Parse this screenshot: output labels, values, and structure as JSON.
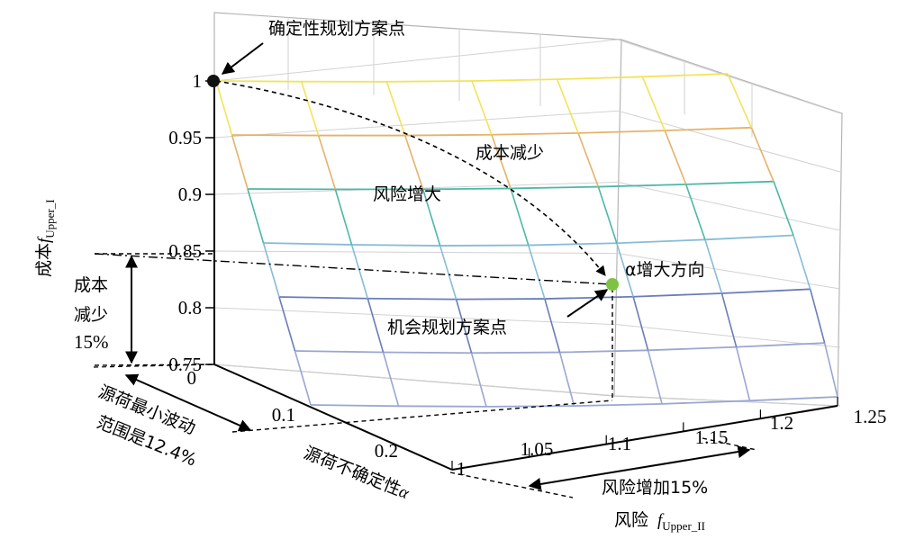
{
  "chart_data": {
    "type": "surface",
    "title": "",
    "x_axis": {
      "label_prefix": "风险",
      "label_var": "f",
      "label_sub": "Upper_II",
      "ticks": [
        "1",
        "1.05",
        "1.1",
        "1.15",
        "1.2",
        "1.25"
      ]
    },
    "y_axis": {
      "label_prefix": "源荷不确定性",
      "label_var": "α",
      "ticks": [
        "0",
        "0.1",
        "0.2"
      ]
    },
    "z_axis": {
      "label_prefix": "成本",
      "label_var": "f",
      "label_sub": "Upper_I",
      "ticks": [
        "1",
        "0.95",
        "0.9",
        "0.85",
        "0.8",
        "0.75"
      ]
    },
    "points": {
      "deterministic": {
        "label": "确定性规划方案点",
        "risk": 1.0,
        "alpha": 0.0,
        "cost": 1.0,
        "color": "#111111"
      },
      "opportunity": {
        "label": "机会规划方案点",
        "risk": 1.15,
        "alpha": 0.124,
        "cost": 0.85,
        "color": "#7dc242"
      }
    },
    "annotations": {
      "cost_decrease": "成本减少",
      "risk_increase": "风险增大",
      "alpha_direction": "α增大方向",
      "cost_reduction_line1": "成本",
      "cost_reduction_line2": "减少",
      "cost_reduction_line3": "15%",
      "range_line1": "源荷最小波动",
      "range_line2": "范围是12.4%",
      "risk_added": "风险增加15%"
    },
    "surface_colors": [
      "#f2e35a",
      "#e6b26a",
      "#4db8a6",
      "#86bcd6",
      "#6b7db8",
      "#9aa7d0"
    ]
  }
}
